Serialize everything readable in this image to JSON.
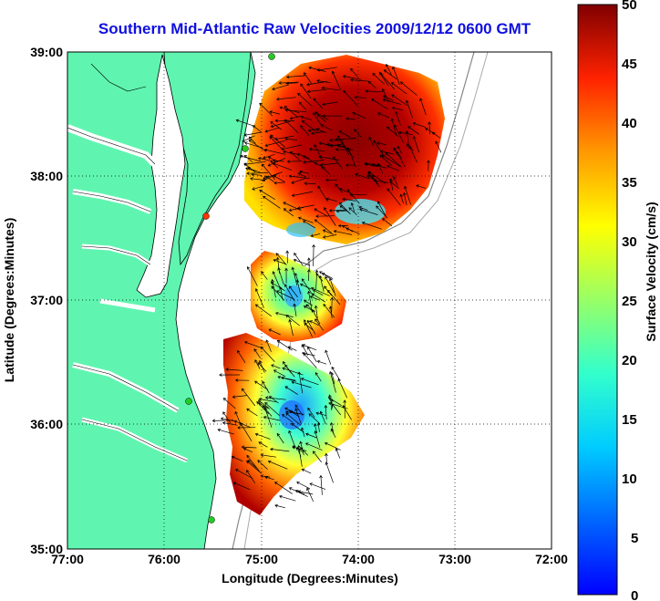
{
  "title": "Southern Mid-Atlantic Raw Velocities 2009/12/12 0600 GMT",
  "axes": {
    "xlabel": "Longitude (Degrees:Minutes)",
    "ylabel": "Latitude (Degrees:Minutes)",
    "x_ticks": [
      "77:00",
      "76:00",
      "75:00",
      "74:00",
      "73:00",
      "72:00"
    ],
    "y_ticks": [
      "39:00",
      "38:00",
      "37:00",
      "36:00",
      "35:00"
    ],
    "xlim": [
      -77,
      -72
    ],
    "ylim": [
      35,
      39
    ],
    "grid": "dotted"
  },
  "colorbar": {
    "label": "Surface Velocity (cm/s)",
    "ticks": [
      "50",
      "45",
      "40",
      "35",
      "30",
      "25",
      "20",
      "15",
      "10",
      "5",
      "0"
    ],
    "range": [
      0,
      50
    ],
    "colormap": "jet"
  },
  "colors": {
    "land": "#5ff5b0",
    "title": "#1010e0"
  }
}
